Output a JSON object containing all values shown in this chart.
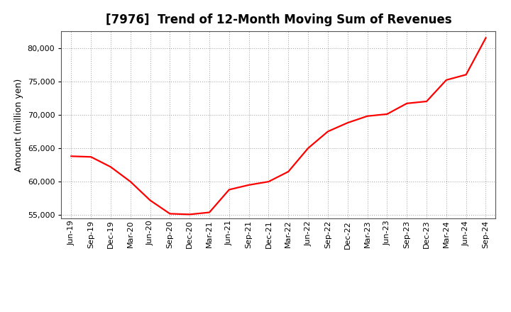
{
  "title": "[7976]  Trend of 12-Month Moving Sum of Revenues",
  "ylabel": "Amount (million yen)",
  "line_color": "#FF0000",
  "background_color": "#FFFFFF",
  "grid_color": "#999999",
  "xlabels": [
    "Jun-19",
    "Sep-19",
    "Dec-19",
    "Mar-20",
    "Jun-20",
    "Sep-20",
    "Dec-20",
    "Mar-21",
    "Jun-21",
    "Sep-21",
    "Dec-21",
    "Mar-22",
    "Jun-22",
    "Sep-22",
    "Dec-22",
    "Mar-23",
    "Jun-23",
    "Sep-23",
    "Dec-23",
    "Mar-24",
    "Jun-24",
    "Sep-24"
  ],
  "x_values": [
    0,
    1,
    2,
    3,
    4,
    5,
    6,
    7,
    8,
    9,
    10,
    11,
    12,
    13,
    14,
    15,
    16,
    17,
    18,
    19,
    20,
    21
  ],
  "y_values": [
    63800,
    63700,
    62200,
    60000,
    57200,
    55200,
    55100,
    55400,
    58800,
    59500,
    60000,
    61500,
    65000,
    67500,
    68800,
    69800,
    70100,
    71700,
    72000,
    75200,
    76000,
    81500
  ],
  "ylim": [
    54500,
    82500
  ],
  "yticks": [
    55000,
    60000,
    65000,
    70000,
    75000,
    80000
  ],
  "title_fontsize": 12,
  "axis_fontsize": 9,
  "tick_fontsize": 8,
  "linewidth": 1.6
}
